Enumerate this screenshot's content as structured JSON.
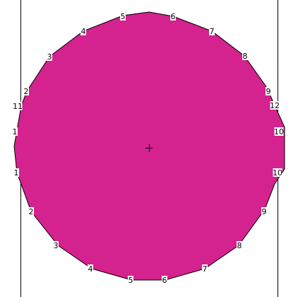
{
  "colors": {
    "fill": "#d4228e",
    "outline": "#000000",
    "background": "#ffffff",
    "label_bg": "#ffffff"
  },
  "vertex_labels": [
    {
      "id": "v-5-top-left",
      "text": "5"
    },
    {
      "id": "v-6-top-right",
      "text": "6"
    },
    {
      "id": "v-7-upper-right",
      "text": "7"
    },
    {
      "id": "v-8-upper-right",
      "text": "8"
    },
    {
      "id": "v-9-upper-right",
      "text": "9"
    },
    {
      "id": "v-12-right",
      "text": "12"
    },
    {
      "id": "v-10-right-a",
      "text": "10"
    },
    {
      "id": "v-10-right-b",
      "text": "10"
    },
    {
      "id": "v-9-lower-right",
      "text": "9"
    },
    {
      "id": "v-8-lower-right",
      "text": "8"
    },
    {
      "id": "v-7-lower-right",
      "text": "7"
    },
    {
      "id": "v-6-bottom",
      "text": "6"
    },
    {
      "id": "v-5-bottom",
      "text": "5"
    },
    {
      "id": "v-4-lower-left",
      "text": "4"
    },
    {
      "id": "v-3-lower-left",
      "text": "3"
    },
    {
      "id": "v-2-lower-left",
      "text": "2"
    },
    {
      "id": "v-1-left-b",
      "text": "1"
    },
    {
      "id": "v-1-left-a",
      "text": "1"
    },
    {
      "id": "v-11-left",
      "text": "11"
    },
    {
      "id": "v-2-upper-left",
      "text": "2"
    },
    {
      "id": "v-3-upper-left",
      "text": "3"
    },
    {
      "id": "v-4-upper-left",
      "text": "4"
    }
  ]
}
